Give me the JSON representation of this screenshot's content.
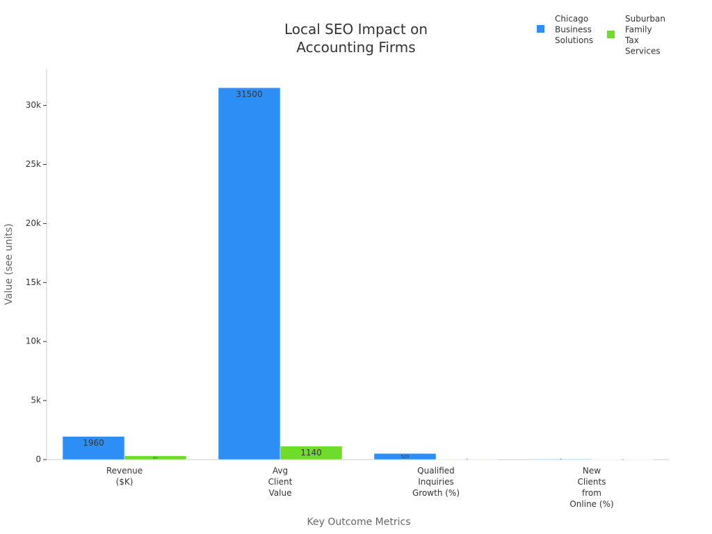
{
  "chart_data": {
    "type": "bar",
    "title": "Local SEO Impact on Accounting Firms",
    "x_label": "Key Outcome Metrics",
    "y_label": "Value (see units)",
    "categories": [
      "Revenue ($K)",
      "Avg Client Value",
      "Qualified Inquiries Growth (%)",
      "New Clients from Online (%)"
    ],
    "series": [
      {
        "name": "Chicago Business Solutions",
        "color": "#2d8ff5",
        "values": [
          1960,
          31500,
          520,
          45
        ]
      },
      {
        "name": "Suburban Family Tax Services",
        "color": "#6ddc2b",
        "values": [
          321,
          1140,
          35,
          25
        ]
      }
    ],
    "ylim": [
      0,
      33100
    ],
    "yticks": [
      0,
      {
        "value": 5000,
        "label": "5k"
      },
      {
        "value": 10000,
        "label": "10k"
      },
      {
        "value": 15000,
        "label": "15k"
      },
      {
        "value": 20000,
        "label": "20k"
      },
      {
        "value": 25000,
        "label": "25k"
      },
      {
        "value": 30000,
        "label": "30k"
      }
    ],
    "legend": "top-right"
  }
}
